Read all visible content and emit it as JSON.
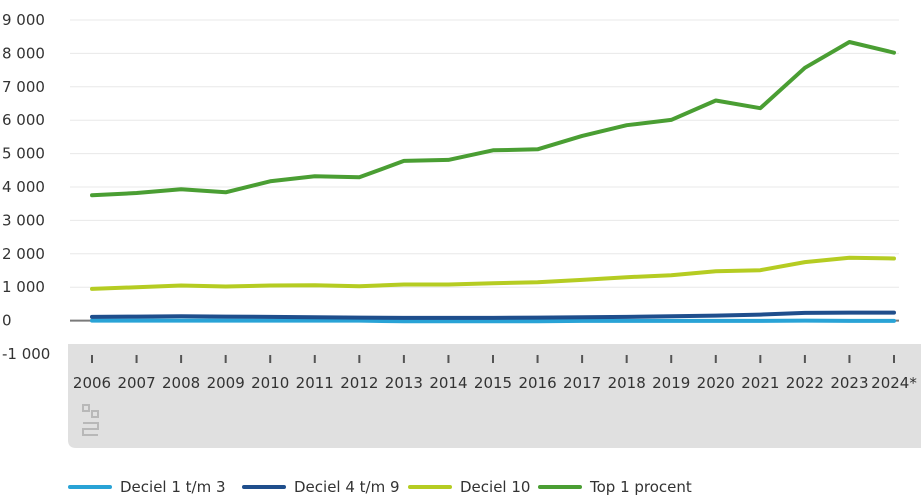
{
  "colors": {
    "grid": "#e8e8e8",
    "zero_line": "#7a7a7a",
    "axis_band": "#e0e0e0",
    "text": "#333333"
  },
  "logo": {
    "name": "cbs-logo-icon"
  },
  "chart_data": {
    "type": "line",
    "categories": [
      "2006",
      "2007",
      "2008",
      "2009",
      "2010",
      "2011",
      "2012",
      "2013",
      "2014",
      "2015",
      "2016",
      "2017",
      "2018",
      "2019",
      "2020",
      "2021",
      "2022",
      "2023",
      "2024*"
    ],
    "ylim": [
      -1000,
      9000
    ],
    "yticks": [
      {
        "value": 9000,
        "label": "9 000"
      },
      {
        "value": 8000,
        "label": "8 000"
      },
      {
        "value": 7000,
        "label": "7 000"
      },
      {
        "value": 6000,
        "label": "6 000"
      },
      {
        "value": 5000,
        "label": "5 000"
      },
      {
        "value": 4000,
        "label": "4 000"
      },
      {
        "value": 3000,
        "label": "3 000"
      },
      {
        "value": 2000,
        "label": "2 000"
      },
      {
        "value": 1000,
        "label": "1 000"
      },
      {
        "value": 0,
        "label": "0"
      },
      {
        "value": -1000,
        "label": "-1 000"
      }
    ],
    "grid": true,
    "legend_position": "bottom",
    "series": [
      {
        "name": "Deciel 1 t/m 3",
        "color": "#29a3d6",
        "values": [
          0,
          0,
          0,
          0,
          0,
          0,
          0,
          -20,
          -20,
          -20,
          -20,
          -10,
          -10,
          -10,
          -10,
          -10,
          0,
          -10,
          -10
        ]
      },
      {
        "name": "Deciel 4 t/m 9",
        "color": "#1f4e8c",
        "values": [
          110,
          120,
          130,
          120,
          110,
          100,
          90,
          80,
          80,
          80,
          90,
          100,
          110,
          130,
          150,
          180,
          230,
          240,
          240
        ]
      },
      {
        "name": "Deciel 10",
        "color": "#b5cc22",
        "values": [
          950,
          1000,
          1050,
          1020,
          1050,
          1060,
          1030,
          1080,
          1080,
          1120,
          1150,
          1220,
          1300,
          1360,
          1480,
          1510,
          1750,
          1880,
          1860
        ]
      },
      {
        "name": "Top 1 procent",
        "color": "#4a9e33",
        "values": [
          3750,
          3820,
          3930,
          3840,
          4170,
          4320,
          4290,
          4780,
          4810,
          5100,
          5130,
          5530,
          5850,
          6010,
          6590,
          6360,
          7570,
          8340,
          8020
        ]
      }
    ]
  }
}
